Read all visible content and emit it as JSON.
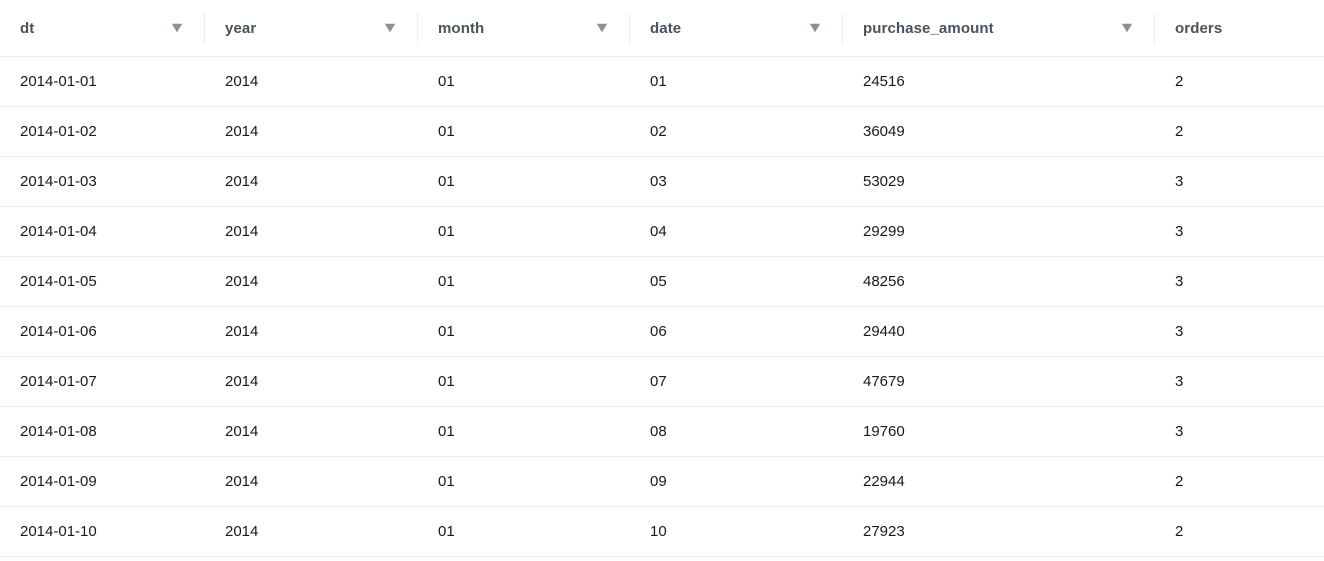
{
  "table": {
    "columns": [
      {
        "label": "dt",
        "has_filter": true
      },
      {
        "label": "year",
        "has_filter": true
      },
      {
        "label": "month",
        "has_filter": true
      },
      {
        "label": "date",
        "has_filter": true
      },
      {
        "label": "purchase_amount",
        "has_filter": true
      },
      {
        "label": "orders",
        "has_filter": false
      }
    ],
    "rows": [
      [
        "2014-01-01",
        "2014",
        "01",
        "01",
        "24516",
        "2"
      ],
      [
        "2014-01-02",
        "2014",
        "01",
        "02",
        "36049",
        "2"
      ],
      [
        "2014-01-03",
        "2014",
        "01",
        "03",
        "53029",
        "3"
      ],
      [
        "2014-01-04",
        "2014",
        "01",
        "04",
        "29299",
        "3"
      ],
      [
        "2014-01-05",
        "2014",
        "01",
        "05",
        "48256",
        "3"
      ],
      [
        "2014-01-06",
        "2014",
        "01",
        "06",
        "29440",
        "3"
      ],
      [
        "2014-01-07",
        "2014",
        "01",
        "07",
        "47679",
        "3"
      ],
      [
        "2014-01-08",
        "2014",
        "01",
        "08",
        "19760",
        "3"
      ],
      [
        "2014-01-09",
        "2014",
        "01",
        "09",
        "22944",
        "2"
      ],
      [
        "2014-01-10",
        "2014",
        "01",
        "10",
        "27923",
        "2"
      ]
    ],
    "icons": {
      "filter_caret": "caret-down-filled-icon"
    },
    "colors": {
      "header_text": "#4a525c",
      "body_text": "#16191f",
      "separator": "#eaeded",
      "caret": "#87929d",
      "background": "#ffffff"
    }
  }
}
